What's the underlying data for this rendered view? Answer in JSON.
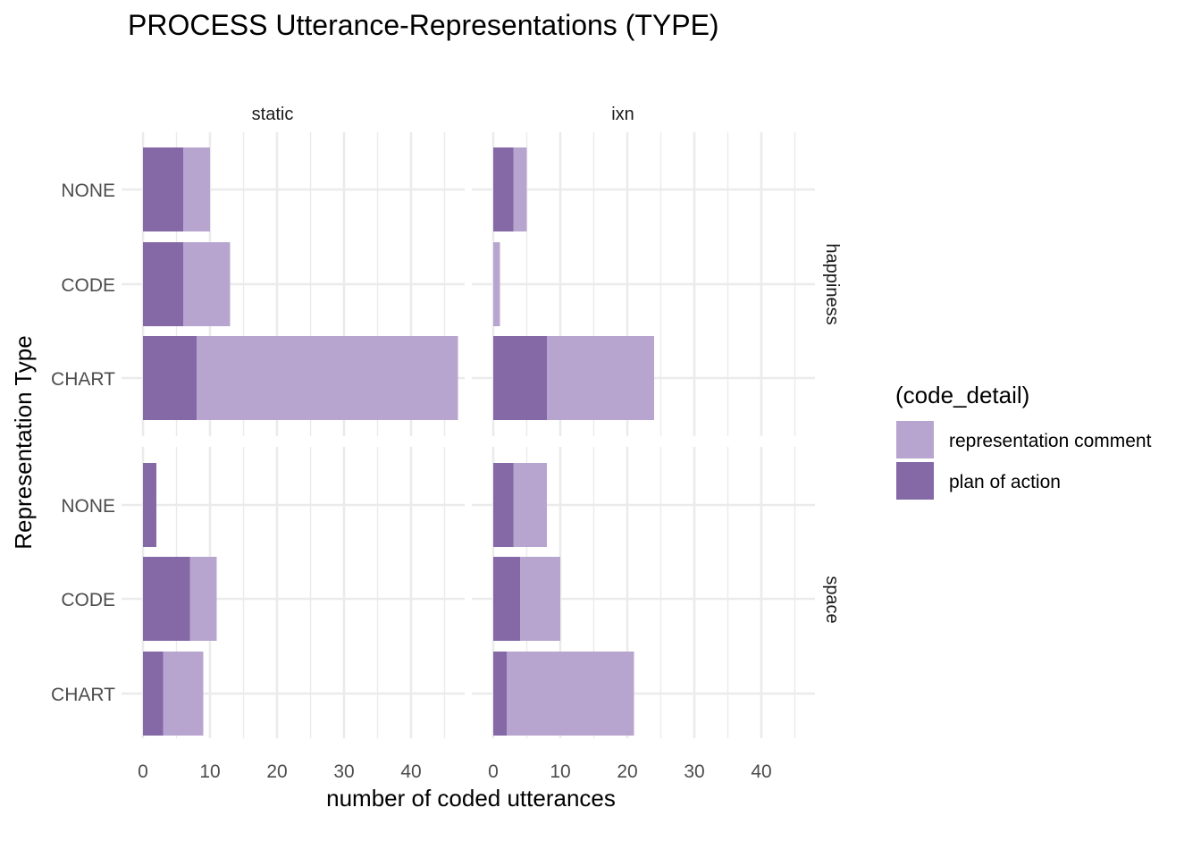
{
  "chart_data": {
    "type": "bar",
    "orientation": "horizontal",
    "stacked": true,
    "title": "PROCESS Utterance-Representations (TYPE)",
    "xlabel": "number of coded utterances",
    "ylabel": "Representation Type",
    "categories": [
      "NONE",
      "CODE",
      "CHART"
    ],
    "x_ticks": [
      0,
      10,
      20,
      30,
      40
    ],
    "xlim": [
      0,
      48
    ],
    "grid": true,
    "legend": {
      "title": "(code_detail)",
      "position": "right",
      "items": [
        {
          "name": "representation comment",
          "color": "#b8a5cf"
        },
        {
          "name": "plan of action",
          "color": "#8469a6"
        }
      ]
    },
    "facet_cols": [
      "static",
      "ixn"
    ],
    "facet_rows": [
      "happiness",
      "space"
    ],
    "panels": [
      {
        "row": "happiness",
        "col": "static",
        "series": [
          {
            "name": "plan of action",
            "values": [
              6,
              6,
              8
            ]
          },
          {
            "name": "representation comment",
            "values": [
              4,
              7,
              39
            ]
          }
        ]
      },
      {
        "row": "happiness",
        "col": "ixn",
        "series": [
          {
            "name": "plan of action",
            "values": [
              3,
              0,
              8
            ]
          },
          {
            "name": "representation comment",
            "values": [
              2,
              1,
              16
            ]
          }
        ]
      },
      {
        "row": "space",
        "col": "static",
        "series": [
          {
            "name": "plan of action",
            "values": [
              2,
              7,
              3
            ]
          },
          {
            "name": "representation comment",
            "values": [
              0,
              4,
              6
            ]
          }
        ]
      },
      {
        "row": "space",
        "col": "ixn",
        "series": [
          {
            "name": "plan of action",
            "values": [
              3,
              4,
              2
            ]
          },
          {
            "name": "representation comment",
            "values": [
              5,
              6,
              19
            ]
          }
        ]
      }
    ]
  }
}
